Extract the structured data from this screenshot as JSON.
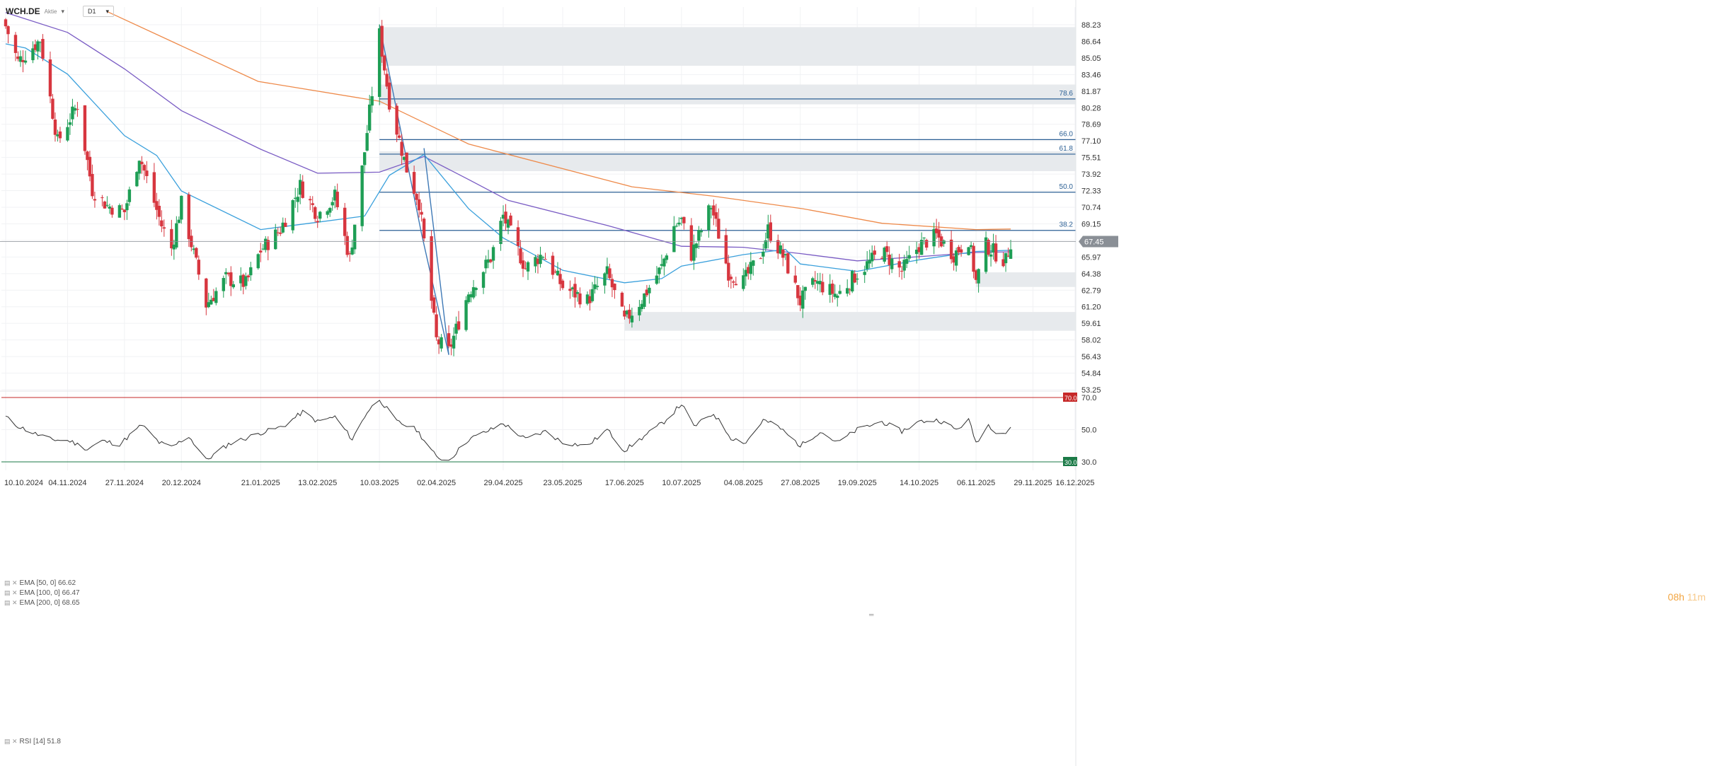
{
  "header": {
    "symbol": "WCH.DE",
    "instrument_type": "Aktie",
    "timeframe": "D1"
  },
  "indicators": {
    "ema50": "EMA [50, 0] 66.62",
    "ema100": "EMA [100, 0] 66.47",
    "ema200": "EMA [200, 0] 68.65",
    "rsi": "RSI [14] 51.8"
  },
  "timer": {
    "hours": "08h",
    "minutes": "11m"
  },
  "colors": {
    "up": "#1e9e55",
    "down": "#d7363f",
    "ema50": "#3aa0dc",
    "ema100": "#7a5cc4",
    "ema200": "#ee8a4a",
    "fib": "#2b5f94",
    "zone": "#e7eaed",
    "rsi": "#333333",
    "rsi_upper": "#c62828",
    "rsi_lower": "#1b7a47"
  },
  "chart_data": [
    {
      "type": "candlestick",
      "ylim": [
        53.25,
        88.23
      ],
      "price_ticks": [
        "88.23",
        "86.64",
        "85.05",
        "83.46",
        "81.87",
        "80.28",
        "78.69",
        "77.10",
        "75.51",
        "73.92",
        "72.33",
        "70.74",
        "69.15",
        "67.56",
        "65.97",
        "64.38",
        "62.79",
        "61.20",
        "59.61",
        "58.02",
        "56.43",
        "54.84",
        "53.25"
      ],
      "date_ticks": [
        "10.10.2024",
        "04.11.2024",
        "27.11.2024",
        "20.12.2024",
        "21.01.2025",
        "13.02.2025",
        "10.03.2025",
        "02.04.2025",
        "29.04.2025",
        "23.05.2025",
        "17.06.2025",
        "10.07.2025",
        "04.08.2025",
        "27.08.2025",
        "19.09.2025",
        "14.10.2025",
        "06.11.2025",
        "29.11.2025",
        "16.12.2025"
      ],
      "last_price": "67.45",
      "fibonacci": [
        {
          "label": "78.6",
          "value": 81.12
        },
        {
          "label": "66.0",
          "value": 77.22
        },
        {
          "label": "61.8",
          "value": 75.83
        },
        {
          "label": "50.0",
          "value": 72.18
        },
        {
          "label": "38.2",
          "value": 68.52
        }
      ],
      "zones": [
        {
          "from_date": "10.03.2025",
          "low": 84.3,
          "high": 88.0
        },
        {
          "from_date": "10.03.2025",
          "low": 80.6,
          "high": 82.5
        },
        {
          "from_date": "10.03.2025",
          "low": 74.2,
          "high": 76.1
        },
        {
          "from_date": "06.11.2025",
          "low": 63.1,
          "high": 64.5
        },
        {
          "from_date": "17.06.2025",
          "low": 58.9,
          "high": 60.7
        }
      ],
      "anchors": [
        [
          "10.10.2024",
          88.1
        ],
        [
          "15.10.2024",
          84.7
        ],
        [
          "24.10.2024",
          86.8
        ],
        [
          "31.10.2024",
          77.0
        ],
        [
          "08.11.2024",
          80.6
        ],
        [
          "14.11.2024",
          72.4
        ],
        [
          "20.11.2024",
          70.9
        ],
        [
          "27.11.2024",
          70.3
        ],
        [
          "03.12.2024",
          75.7
        ],
        [
          "12.12.2024",
          69.0
        ],
        [
          "16.12.2024",
          66.8
        ],
        [
          "20.12.2024",
          71.1
        ],
        [
          "30.12.2024",
          61.4
        ],
        [
          "07.01.2025",
          63.9
        ],
        [
          "15.01.2025",
          63.4
        ],
        [
          "21.01.2025",
          66.6
        ],
        [
          "29.01.2025",
          68.6
        ],
        [
          "06.02.2025",
          72.8
        ],
        [
          "13.02.2025",
          70.0
        ],
        [
          "20.02.2025",
          71.8
        ],
        [
          "26.02.2025",
          65.8
        ],
        [
          "04.03.2025",
          76.1
        ],
        [
          "10.03.2025",
          87.3
        ],
        [
          "14.03.2025",
          80.9
        ],
        [
          "21.03.2025",
          74.4
        ],
        [
          "26.03.2025",
          71.2
        ],
        [
          "02.04.2025",
          58.0
        ],
        [
          "07.04.2025",
          56.9
        ],
        [
          "15.04.2025",
          62.6
        ],
        [
          "24.04.2025",
          65.9
        ],
        [
          "29.04.2025",
          69.9
        ],
        [
          "08.05.2025",
          64.9
        ],
        [
          "15.05.2025",
          66.3
        ],
        [
          "23.05.2025",
          63.1
        ],
        [
          "02.06.2025",
          61.8
        ],
        [
          "10.06.2025",
          64.4
        ],
        [
          "17.06.2025",
          59.8
        ],
        [
          "24.06.2025",
          61.9
        ],
        [
          "02.07.2025",
          65.0
        ],
        [
          "07.07.2025",
          68.9
        ],
        [
          "10.07.2025",
          69.5
        ],
        [
          "14.07.2025",
          66.2
        ],
        [
          "22.07.2025",
          70.9
        ],
        [
          "29.07.2025",
          64.5
        ],
        [
          "04.08.2025",
          63.6
        ],
        [
          "11.08.2025",
          66.2
        ],
        [
          "14.08.2025",
          68.6
        ],
        [
          "21.08.2025",
          65.6
        ],
        [
          "27.08.2025",
          61.7
        ],
        [
          "02.09.2025",
          63.6
        ],
        [
          "11.09.2025",
          62.3
        ],
        [
          "19.09.2025",
          64.4
        ],
        [
          "29.09.2025",
          66.5
        ],
        [
          "07.10.2025",
          64.6
        ],
        [
          "14.10.2025",
          67.1
        ],
        [
          "21.10.2025",
          68.0
        ],
        [
          "28.10.2025",
          66.2
        ],
        [
          "03.11.2025",
          67.7
        ],
        [
          "06.11.2025",
          63.6
        ],
        [
          "10.11.2025",
          67.1
        ],
        [
          "14.11.2025",
          66.3
        ],
        [
          "18.11.2025",
          65.6
        ],
        [
          "20.11.2025",
          67.45
        ]
      ],
      "ema200_path": [
        [
          "20.11.2024",
          89.5
        ],
        [
          "20.01.2025",
          82.8
        ],
        [
          "10.03.2025",
          80.9
        ],
        [
          "15.04.2025",
          76.8
        ],
        [
          "20.06.2025",
          72.7
        ],
        [
          "23.07.2025",
          71.8
        ],
        [
          "28.08.2025",
          70.6
        ],
        [
          "29.09.2025",
          69.2
        ],
        [
          "06.11.2025",
          68.6
        ],
        [
          "20.11.2025",
          68.65
        ]
      ],
      "ema100_path": [
        [
          "10.10.2024",
          89.4
        ],
        [
          "04.11.2024",
          87.5
        ],
        [
          "27.11.2024",
          84.0
        ],
        [
          "20.12.2024",
          80.0
        ],
        [
          "21.01.2025",
          76.3
        ],
        [
          "13.02.2025",
          74.0
        ],
        [
          "10.03.2025",
          74.1
        ],
        [
          "28.03.2025",
          75.6
        ],
        [
          "15.04.2025",
          73.4
        ],
        [
          "01.05.2025",
          71.4
        ],
        [
          "10.06.2025",
          69.0
        ],
        [
          "10.07.2025",
          67.0
        ],
        [
          "04.08.2025",
          66.9
        ],
        [
          "27.08.2025",
          66.3
        ],
        [
          "19.09.2025",
          65.6
        ],
        [
          "14.10.2025",
          66.0
        ],
        [
          "06.11.2025",
          66.4
        ],
        [
          "20.11.2025",
          66.47
        ]
      ],
      "ema50_path": [
        [
          "10.10.2024",
          86.4
        ],
        [
          "18.10.2024",
          86.0
        ],
        [
          "04.11.2024",
          83.5
        ],
        [
          "27.11.2024",
          77.6
        ],
        [
          "10.12.2024",
          75.7
        ],
        [
          "20.12.2024",
          72.3
        ],
        [
          "21.01.2025",
          68.6
        ],
        [
          "13.02.2025",
          69.3
        ],
        [
          "04.03.2025",
          69.9
        ],
        [
          "14.03.2025",
          73.8
        ],
        [
          "28.03.2025",
          75.8
        ],
        [
          "15.04.2025",
          70.6
        ],
        [
          "29.04.2025",
          67.8
        ],
        [
          "23.05.2025",
          64.7
        ],
        [
          "17.06.2025",
          63.5
        ],
        [
          "02.07.2025",
          63.9
        ],
        [
          "10.07.2025",
          65.1
        ],
        [
          "04.08.2025",
          66.2
        ],
        [
          "21.08.2025",
          66.7
        ],
        [
          "27.08.2025",
          65.3
        ],
        [
          "19.09.2025",
          64.6
        ],
        [
          "14.10.2025",
          65.7
        ],
        [
          "06.11.2025",
          66.5
        ],
        [
          "20.11.2025",
          66.62
        ]
      ],
      "trend_lines": [
        [
          [
            "10.03.2025",
            88.2
          ],
          [
            "27.03.2025",
            68.2
          ],
          [
            "07.04.2025",
            56.6
          ]
        ],
        [
          [
            "07.04.2025",
            56.6
          ],
          [
            "28.03.2025",
            76.4
          ]
        ]
      ]
    },
    {
      "type": "line",
      "name": "RSI [14]",
      "ylim": [
        30.0,
        70.0
      ],
      "y_ticks": [
        "70.0",
        "50.0",
        "30.0"
      ],
      "levels": [
        70.0,
        30.0
      ],
      "anchors": [
        [
          "10.10.2024",
          58
        ],
        [
          "14.10.2024",
          53
        ],
        [
          "21.10.2024",
          48
        ],
        [
          "28.10.2024",
          44
        ],
        [
          "05.11.2024",
          43
        ],
        [
          "12.11.2024",
          38
        ],
        [
          "18.11.2024",
          43
        ],
        [
          "25.11.2024",
          41
        ],
        [
          "04.12.2024",
          53
        ],
        [
          "11.12.2024",
          42
        ],
        [
          "16.12.2024",
          39
        ],
        [
          "23.12.2024",
          46
        ],
        [
          "30.12.2024",
          31
        ],
        [
          "08.01.2025",
          41
        ],
        [
          "16.12.2024",
          39
        ],
        [
          "21.01.2025",
          48
        ],
        [
          "30.01.2025",
          52
        ],
        [
          "07.02.2025",
          61
        ],
        [
          "13.02.2025",
          55
        ],
        [
          "20.02.2025",
          58
        ],
        [
          "27.02.2025",
          44
        ],
        [
          "05.03.2025",
          61
        ],
        [
          "10.03.2025",
          69
        ],
        [
          "17.03.2025",
          55
        ],
        [
          "25.03.2025",
          50
        ],
        [
          "02.04.2025",
          33
        ],
        [
          "07.04.2025",
          31
        ],
        [
          "15.04.2025",
          44
        ],
        [
          "24.04.2025",
          50
        ],
        [
          "29.04.2025",
          54
        ],
        [
          "08.05.2025",
          44
        ],
        [
          "16.05.2025",
          49
        ],
        [
          "23.05.2025",
          42
        ],
        [
          "02.06.2025",
          40
        ],
        [
          "10.06.2025",
          50
        ],
        [
          "17.06.2025",
          37
        ],
        [
          "26.06.2025",
          47
        ],
        [
          "03.07.2025",
          55
        ],
        [
          "10.07.2025",
          66
        ],
        [
          "15.07.2025",
          52
        ],
        [
          "23.07.2025",
          60
        ],
        [
          "30.07.2025",
          45
        ],
        [
          "05.08.2025",
          42
        ],
        [
          "12.08.2025",
          56
        ],
        [
          "18.08.2025",
          52
        ],
        [
          "27.08.2025",
          40
        ],
        [
          "04.09.2025",
          49
        ],
        [
          "11.09.2025",
          42
        ],
        [
          "19.09.2025",
          50
        ],
        [
          "29.09.2025",
          55
        ],
        [
          "07.10.2025",
          49
        ],
        [
          "14.10.2025",
          55
        ],
        [
          "22.10.2025",
          56
        ],
        [
          "29.10.2025",
          50
        ],
        [
          "03.11.2025",
          56
        ],
        [
          "06.11.2025",
          42
        ],
        [
          "11.11.2025",
          53
        ],
        [
          "14.11.2025",
          49
        ],
        [
          "18.11.2025",
          48
        ],
        [
          "20.11.2025",
          51.8
        ]
      ]
    }
  ]
}
